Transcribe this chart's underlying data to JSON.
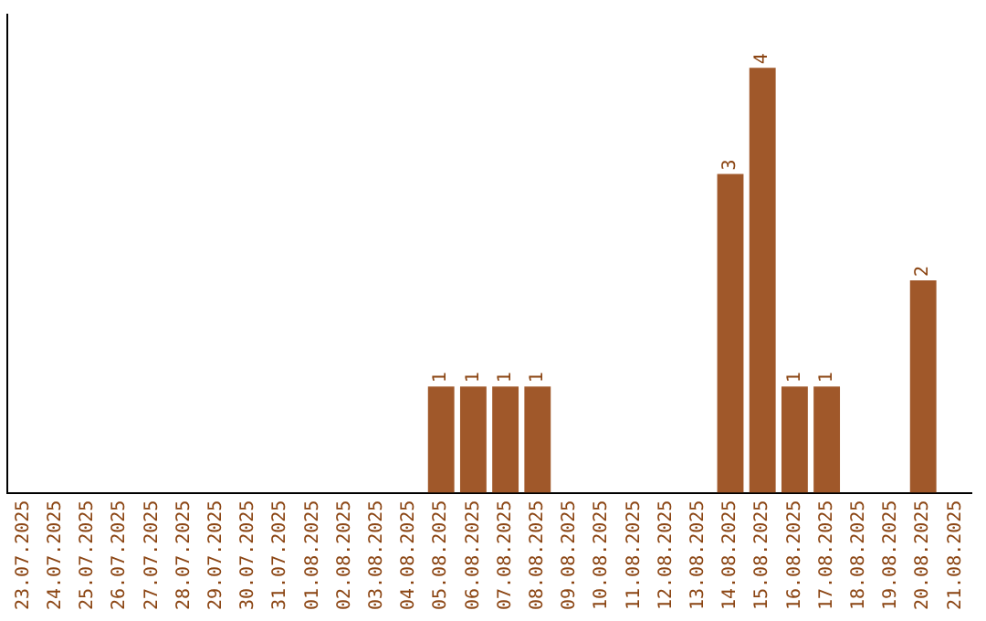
{
  "chart_data": {
    "type": "bar",
    "categories": [
      "23.07.2025",
      "24.07.2025",
      "25.07.2025",
      "26.07.2025",
      "27.07.2025",
      "28.07.2025",
      "29.07.2025",
      "30.07.2025",
      "31.07.2025",
      "01.08.2025",
      "02.08.2025",
      "03.08.2025",
      "04.08.2025",
      "05.08.2025",
      "06.08.2025",
      "07.08.2025",
      "08.08.2025",
      "09.08.2025",
      "10.08.2025",
      "11.08.2025",
      "12.08.2025",
      "13.08.2025",
      "14.08.2025",
      "15.08.2025",
      "16.08.2025",
      "17.08.2025",
      "18.08.2025",
      "19.08.2025",
      "20.08.2025",
      "21.08.2025"
    ],
    "values": [
      null,
      null,
      null,
      null,
      null,
      null,
      null,
      null,
      null,
      null,
      null,
      null,
      null,
      1,
      1,
      1,
      1,
      null,
      null,
      null,
      null,
      null,
      3,
      4,
      1,
      1,
      null,
      null,
      2,
      null
    ],
    "color": "#a0582a",
    "data_labels": true,
    "tick_labels": "x"
  }
}
